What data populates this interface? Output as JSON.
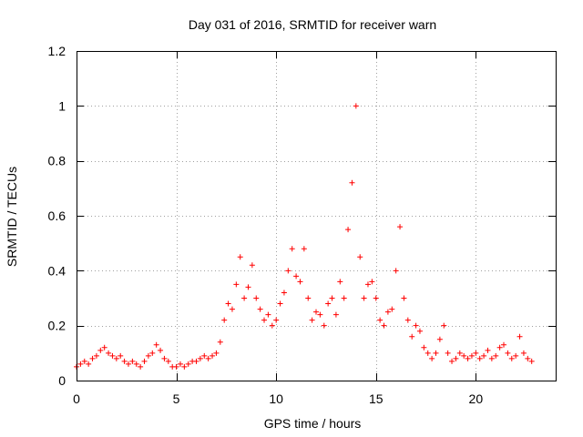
{
  "chart_data": {
    "type": "scatter",
    "title": "Day 031 of 2016, SRMTID for receiver warn",
    "xlabel": "GPS time / hours",
    "ylabel": "SRMTID / TECUs",
    "xlim": [
      0,
      24
    ],
    "ylim": [
      0,
      1.2
    ],
    "xticks": [
      "0",
      "5",
      "10",
      "15",
      "20"
    ],
    "xtick_values": [
      0,
      5,
      10,
      15,
      20
    ],
    "yticks": [
      "0",
      "0.2",
      "0.4",
      "0.6",
      "0.8",
      "1",
      "1.2"
    ],
    "ytick_values": [
      0,
      0.2,
      0.4,
      0.6,
      0.8,
      1.0,
      1.2
    ],
    "grid": true,
    "marker": "+",
    "series": [
      {
        "name": "SRMTID",
        "color": "#ff0000",
        "x": [
          0.0,
          0.2,
          0.4,
          0.6,
          0.8,
          1.0,
          1.2,
          1.4,
          1.6,
          1.8,
          2.0,
          2.2,
          2.4,
          2.6,
          2.8,
          3.0,
          3.2,
          3.4,
          3.6,
          3.8,
          4.0,
          4.2,
          4.4,
          4.6,
          4.8,
          5.0,
          5.2,
          5.4,
          5.6,
          5.8,
          6.0,
          6.2,
          6.4,
          6.6,
          6.8,
          7.0,
          7.2,
          7.4,
          7.6,
          7.8,
          8.0,
          8.2,
          8.4,
          8.6,
          8.8,
          9.0,
          9.2,
          9.4,
          9.6,
          9.8,
          10.0,
          10.2,
          10.4,
          10.6,
          10.8,
          11.0,
          11.2,
          11.4,
          11.6,
          11.8,
          12.0,
          12.2,
          12.4,
          12.6,
          12.8,
          13.0,
          13.2,
          13.4,
          13.6,
          13.8,
          14.0,
          14.2,
          14.4,
          14.6,
          14.8,
          15.0,
          15.2,
          15.4,
          15.6,
          15.8,
          16.0,
          16.2,
          16.4,
          16.6,
          16.8,
          17.0,
          17.2,
          17.4,
          17.6,
          17.8,
          18.0,
          18.2,
          18.4,
          18.6,
          18.8,
          19.0,
          19.2,
          19.4,
          19.6,
          19.8,
          20.0,
          20.2,
          20.4,
          20.6,
          20.8,
          21.0,
          21.2,
          21.4,
          21.6,
          21.8,
          22.0,
          22.2,
          22.4,
          22.6,
          22.8
        ],
        "y": [
          0.05,
          0.06,
          0.07,
          0.06,
          0.08,
          0.09,
          0.11,
          0.12,
          0.1,
          0.09,
          0.08,
          0.09,
          0.07,
          0.06,
          0.07,
          0.06,
          0.05,
          0.07,
          0.09,
          0.1,
          0.13,
          0.11,
          0.08,
          0.07,
          0.05,
          0.05,
          0.06,
          0.05,
          0.06,
          0.07,
          0.07,
          0.08,
          0.09,
          0.08,
          0.09,
          0.1,
          0.14,
          0.22,
          0.28,
          0.26,
          0.35,
          0.45,
          0.3,
          0.34,
          0.42,
          0.3,
          0.26,
          0.22,
          0.24,
          0.2,
          0.22,
          0.28,
          0.32,
          0.4,
          0.48,
          0.38,
          0.36,
          0.48,
          0.3,
          0.22,
          0.25,
          0.24,
          0.2,
          0.28,
          0.3,
          0.24,
          0.36,
          0.3,
          0.55,
          0.72,
          1.0,
          0.45,
          0.3,
          0.35,
          0.36,
          0.3,
          0.22,
          0.2,
          0.25,
          0.26,
          0.4,
          0.56,
          0.3,
          0.22,
          0.16,
          0.2,
          0.18,
          0.12,
          0.1,
          0.08,
          0.1,
          0.15,
          0.2,
          0.1,
          0.07,
          0.08,
          0.1,
          0.09,
          0.08,
          0.09,
          0.1,
          0.08,
          0.09,
          0.11,
          0.08,
          0.09,
          0.12,
          0.13,
          0.1,
          0.08,
          0.09,
          0.16,
          0.1,
          0.08,
          0.07
        ]
      }
    ]
  }
}
